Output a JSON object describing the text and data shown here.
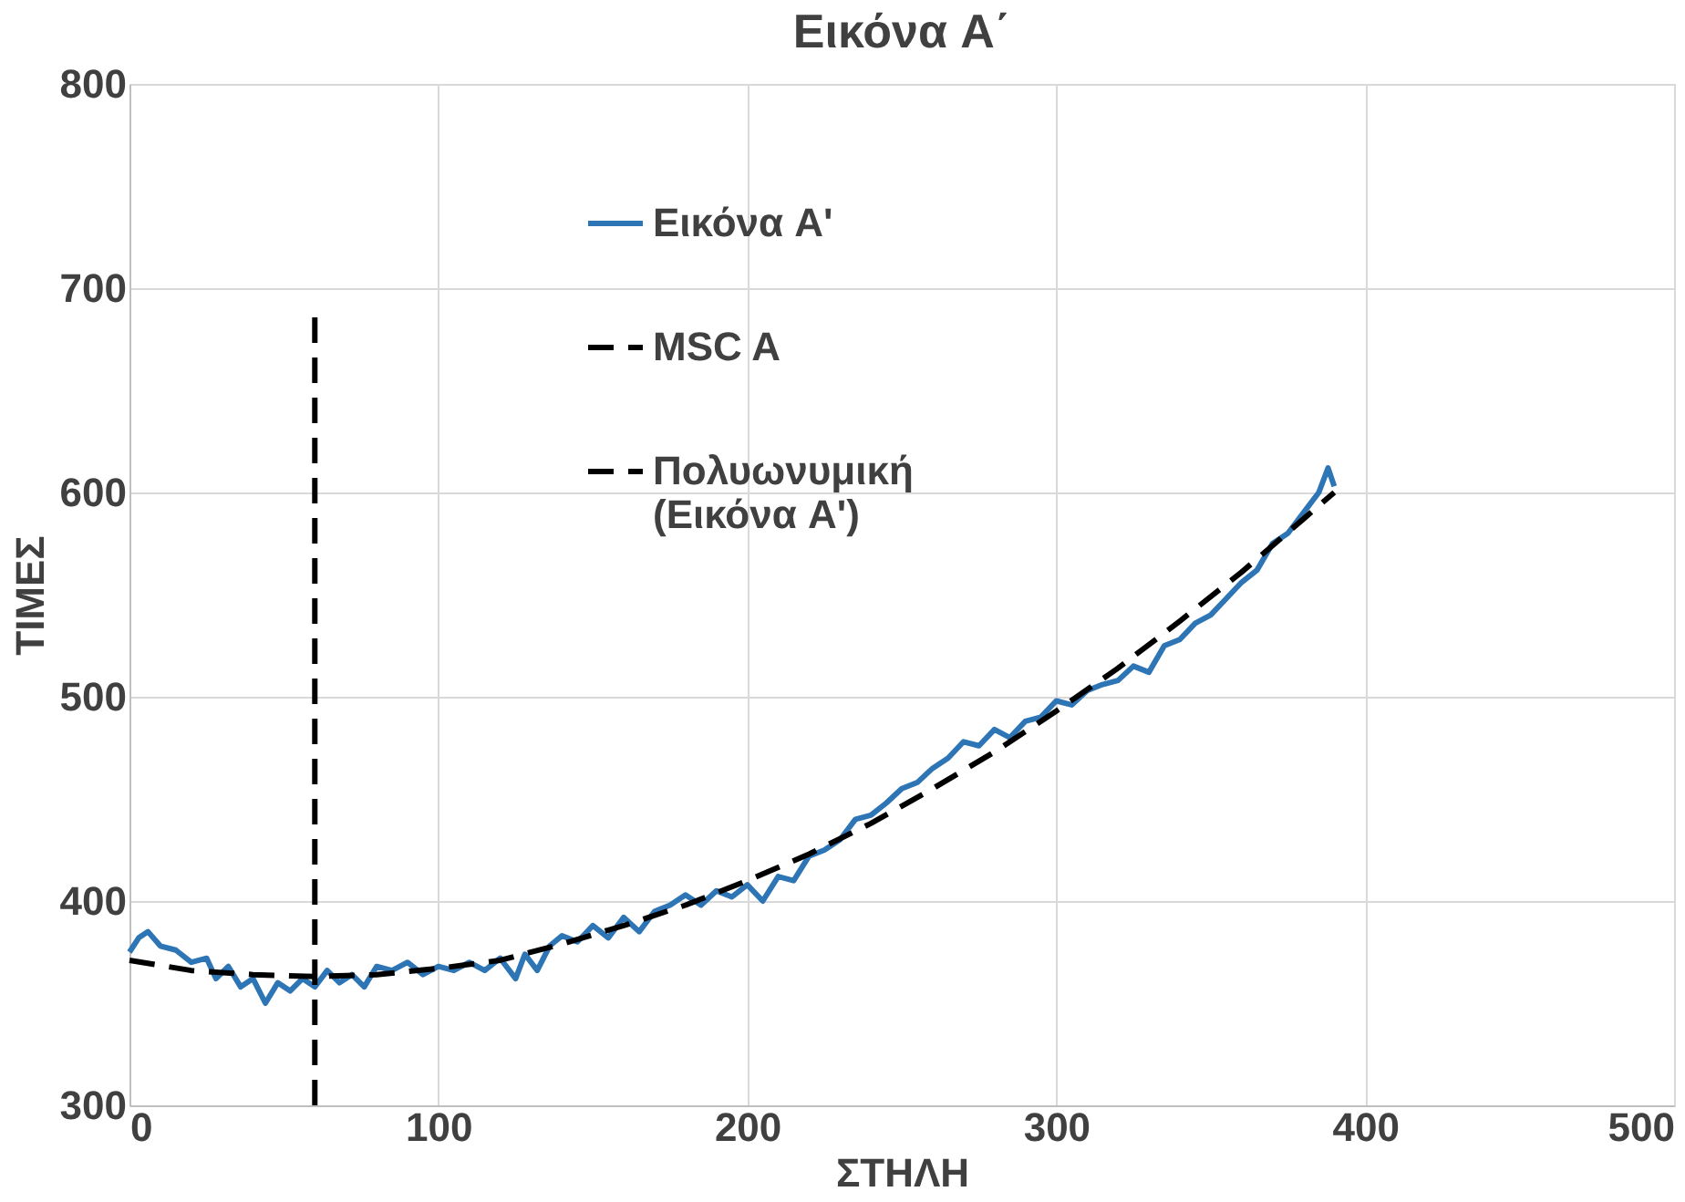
{
  "chart_data": {
    "type": "line",
    "title": "Εικόνα A΄",
    "xlabel": "ΣΤΗΛΗ",
    "ylabel": "ΤΙΜΕΣ",
    "xlim": [
      0,
      500
    ],
    "xticks": [
      0,
      100,
      200,
      300,
      400,
      500
    ],
    "ylim": [
      300,
      800
    ],
    "yticks": [
      300,
      400,
      500,
      600,
      700,
      800
    ],
    "grid": true,
    "legend": "top",
    "marker": "none",
    "series": [
      {
        "name": "Εικόνα A'",
        "color": "#2e75b6",
        "line_style": "solid",
        "x": [
          0,
          3,
          6,
          10,
          15,
          20,
          25,
          28,
          32,
          36,
          40,
          44,
          48,
          52,
          56,
          60,
          64,
          68,
          72,
          76,
          80,
          85,
          90,
          95,
          100,
          105,
          110,
          115,
          120,
          125,
          128,
          132,
          136,
          140,
          145,
          150,
          155,
          160,
          165,
          170,
          175,
          180,
          185,
          190,
          195,
          200,
          205,
          210,
          215,
          220,
          225,
          230,
          235,
          240,
          245,
          250,
          255,
          260,
          265,
          270,
          275,
          280,
          285,
          290,
          295,
          300,
          305,
          310,
          315,
          320,
          325,
          330,
          335,
          340,
          345,
          350,
          355,
          360,
          365,
          370,
          375,
          380,
          385,
          388,
          390
        ],
        "values": [
          375,
          382,
          385,
          378,
          376,
          370,
          372,
          362,
          368,
          358,
          362,
          350,
          360,
          356,
          362,
          358,
          366,
          360,
          364,
          358,
          368,
          366,
          370,
          364,
          368,
          366,
          370,
          366,
          372,
          362,
          374,
          366,
          378,
          383,
          380,
          388,
          382,
          392,
          385,
          395,
          398,
          403,
          398,
          405,
          402,
          408,
          400,
          412,
          410,
          422,
          425,
          430,
          440,
          442,
          448,
          455,
          458,
          465,
          470,
          478,
          476,
          484,
          480,
          488,
          490,
          498,
          496,
          503,
          506,
          508,
          515,
          512,
          525,
          528,
          536,
          540,
          548,
          556,
          562,
          575,
          580,
          590,
          600,
          612,
          603
        ]
      },
      {
        "name": "MSC A",
        "color": "#000000",
        "line_style": "dashed",
        "x": [
          60,
          60
        ],
        "values": [
          300,
          690
        ]
      },
      {
        "name": "Πολυωνυμική (Εικόνα A')",
        "color": "#000000",
        "line_style": "dashed",
        "x": [
          0,
          20,
          40,
          60,
          80,
          100,
          120,
          140,
          160,
          180,
          200,
          220,
          240,
          260,
          280,
          300,
          320,
          340,
          360,
          380,
          390
        ],
        "values": [
          371,
          366,
          364,
          363,
          364,
          367,
          371,
          379,
          388,
          398,
          410,
          423,
          438,
          455,
          473,
          493,
          514,
          537,
          561,
          587,
          600
        ]
      }
    ]
  }
}
